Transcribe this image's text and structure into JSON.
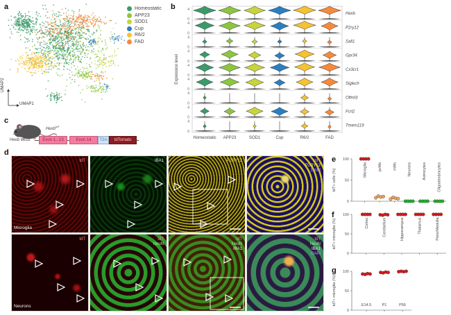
{
  "panels": {
    "a": "a",
    "b": "b",
    "c": "c",
    "d": "d",
    "e": "e",
    "f": "f",
    "g": "g"
  },
  "colors": {
    "Homeostatic": "#3a9b6a",
    "APP23": "#8cc63f",
    "SOD1": "#c8d43a",
    "Cup": "#2a7fc1",
    "R6/2": "#f5c232",
    "FAD": "#f7893b",
    "red_dot": "#d7191c",
    "orange_dot": "#f4a259",
    "green_dot": "#1fb32a"
  },
  "umap": {
    "xlabel": "UMAP1",
    "ylabel": "UMAP2",
    "legend": [
      "Homeostatic",
      "APP23",
      "SOD1",
      "Cup",
      "R6/2",
      "FAD"
    ]
  },
  "construct": {
    "mouse_label": "Hexb",
    "mouse_superscript": "tdT",
    "locus_label": "Hexb locus",
    "segments": [
      "Exon 1...13",
      "Exon 14",
      "T2A",
      "tdTomato"
    ]
  },
  "micrographs": {
    "top_row": [
      {
        "channels": [
          "tdT"
        ],
        "caption": "Microglia"
      },
      {
        "channels": [
          "IBA1"
        ],
        "caption": ""
      },
      {
        "channels": [
          "P2RY12"
        ],
        "caption": ""
      },
      {
        "channels": [
          "tdT",
          "P2RY12",
          "DAPI"
        ],
        "caption": ""
      }
    ],
    "bottom_row": [
      {
        "channels": [
          "tdT"
        ],
        "caption": "Neurons"
      },
      {
        "channels": [
          "tdT",
          "NeuN"
        ],
        "caption": ""
      },
      {
        "channels": [
          "tdT",
          "NeuN",
          "IBA1"
        ],
        "caption": ""
      },
      {
        "channels": [
          "tdT",
          "NeuN",
          "IBA1",
          "DAPI"
        ],
        "caption": ""
      }
    ]
  },
  "chart_data": [
    {
      "id": "b",
      "type": "violin",
      "title": "",
      "ylabel": "Expression level",
      "categories": [
        "Homeostatic",
        "APP23",
        "SOD1",
        "Cup",
        "R6/2",
        "FAD"
      ],
      "ylim": [
        0,
        4
      ],
      "yticks": [
        "0",
        "4"
      ],
      "genes": [
        {
          "name": "Hexb",
          "median": [
            3.2,
            3.2,
            3.2,
            3.2,
            3.3,
            3.2
          ],
          "width": [
            1.0,
            1.0,
            0.95,
            1.0,
            1.0,
            1.0
          ]
        },
        {
          "name": "P2ry12",
          "median": [
            2.8,
            2.7,
            2.8,
            2.6,
            2.9,
            2.6
          ],
          "width": [
            0.85,
            0.95,
            0.95,
            0.8,
            1.0,
            0.75
          ]
        },
        {
          "name": "Sall1",
          "median": [
            2.0,
            2.2,
            2.0,
            2.0,
            2.2,
            1.8
          ],
          "width": [
            0.2,
            0.3,
            0.25,
            0.2,
            0.2,
            0.2
          ]
        },
        {
          "name": "Gpr34",
          "median": [
            2.4,
            2.5,
            2.2,
            2.0,
            2.6,
            2.2
          ],
          "width": [
            0.45,
            0.75,
            0.55,
            0.45,
            0.85,
            0.6
          ]
        },
        {
          "name": "Cx3cr1",
          "median": [
            2.8,
            2.8,
            2.8,
            2.8,
            3.0,
            2.9
          ],
          "width": [
            0.8,
            0.95,
            0.9,
            0.85,
            0.9,
            0.95
          ]
        },
        {
          "name": "Siglech",
          "median": [
            2.6,
            2.6,
            2.5,
            2.4,
            2.6,
            2.6
          ],
          "width": [
            0.75,
            0.85,
            0.8,
            0.5,
            0.75,
            0.75
          ]
        },
        {
          "name": "Olfml3",
          "median": [
            2.0,
            0.0,
            0.0,
            0.0,
            2.0,
            1.6
          ],
          "width": [
            0.15,
            0.0,
            0.0,
            0.0,
            0.35,
            0.18
          ]
        },
        {
          "name": "Fcrl2",
          "median": [
            2.2,
            2.1,
            2.2,
            2.1,
            2.0,
            1.8
          ],
          "width": [
            0.4,
            0.5,
            0.75,
            0.75,
            0.4,
            0.4
          ]
        },
        {
          "name": "Tmem119",
          "median": [
            1.8,
            0.0,
            1.8,
            0.0,
            1.9,
            1.6
          ],
          "width": [
            0.15,
            0.0,
            0.15,
            0.0,
            0.3,
            0.15
          ]
        }
      ]
    },
    {
      "id": "e",
      "type": "scatter",
      "ylabel": "tdT+ cells (%)",
      "ylim": [
        0,
        100
      ],
      "yticks": [
        "0",
        "50",
        "100"
      ],
      "categories": [
        "Microglia",
        "pvMs",
        "mMs",
        "Neurons",
        "Astrocytes",
        "Oligodendrocytes"
      ],
      "series": [
        {
          "name": "Microglia",
          "values": [
            100,
            100,
            100,
            100
          ],
          "color": "red_dot"
        },
        {
          "name": "pvMs",
          "values": [
            8,
            12,
            10,
            11
          ],
          "color": "orange_dot"
        },
        {
          "name": "mMs",
          "values": [
            5,
            9,
            7,
            6
          ],
          "color": "orange_dot"
        },
        {
          "name": "Neurons",
          "values": [
            0,
            0,
            0,
            0
          ],
          "color": "green_dot"
        },
        {
          "name": "Astrocytes",
          "values": [
            0,
            0,
            0,
            0
          ],
          "color": "green_dot"
        },
        {
          "name": "Oligodendrocytes",
          "values": [
            0,
            0,
            0,
            0
          ],
          "color": "green_dot"
        }
      ]
    },
    {
      "id": "f",
      "type": "scatter",
      "ylabel": "tdT+ microglia (%)",
      "ylim": [
        0,
        100
      ],
      "yticks": [
        "0",
        "50",
        "100"
      ],
      "categories": [
        "Cortex",
        "Cerebellum",
        "Hippocampus",
        "Thalamus",
        "Pons/Medulla"
      ],
      "series": [
        {
          "name": "Cortex",
          "values": [
            100,
            100,
            100,
            100
          ],
          "color": "red_dot"
        },
        {
          "name": "Cerebellum",
          "values": [
            99,
            98,
            100,
            99
          ],
          "color": "red_dot"
        },
        {
          "name": "Hippocampus",
          "values": [
            100,
            100,
            100,
            100
          ],
          "color": "red_dot"
        },
        {
          "name": "Thalamus",
          "values": [
            100,
            100,
            100,
            100
          ],
          "color": "red_dot"
        },
        {
          "name": "Pons/Medulla",
          "values": [
            100,
            100,
            100,
            100
          ],
          "color": "red_dot"
        }
      ]
    },
    {
      "id": "g",
      "type": "scatter",
      "ylabel": "tdT+ microglia (%)",
      "ylim": [
        0,
        100
      ],
      "yticks": [
        "0",
        "50",
        "100"
      ],
      "categories": [
        "E14.5",
        "P1",
        "P56"
      ],
      "series": [
        {
          "name": "E14.5",
          "values": [
            93,
            92,
            94,
            93
          ],
          "color": "red_dot"
        },
        {
          "name": "P1",
          "values": [
            97,
            96,
            98,
            97
          ],
          "color": "red_dot"
        },
        {
          "name": "P56",
          "values": [
            99,
            100,
            99,
            100
          ],
          "color": "red_dot"
        }
      ]
    }
  ]
}
